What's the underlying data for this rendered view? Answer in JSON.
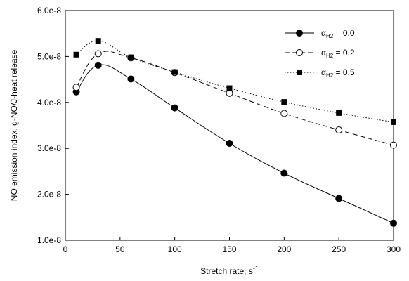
{
  "chart_data": {
    "type": "line",
    "title": "",
    "xlabel": "Stretch rate, s",
    "xlabel_superscript": "-1",
    "ylabel": "NO emission index, g-NO/J-heat release",
    "xlim": [
      0,
      300
    ],
    "ylim": [
      1e-08,
      6e-08
    ],
    "x_ticks": [
      0,
      50,
      100,
      150,
      200,
      250,
      300
    ],
    "x_tick_labels": [
      "0",
      "50",
      "100",
      "150",
      "200",
      "250",
      "300"
    ],
    "y_ticks": [
      1e-08,
      2e-08,
      3e-08,
      4e-08,
      5e-08,
      6e-08
    ],
    "y_tick_labels": [
      "1.0e-8",
      "2.0e-8",
      "3.0e-8",
      "4.0e-8",
      "5.0e-8",
      "6.0e-8"
    ],
    "grid": false,
    "legend_position": "top-right",
    "series": [
      {
        "name": "α_H2 = 0.0",
        "legend_symbol": "α",
        "legend_subscript": "H2",
        "legend_value": " = 0.0",
        "marker": "filled-circle",
        "line_style": "solid",
        "color": "#000000",
        "x": [
          10,
          30,
          60,
          100,
          150,
          200,
          250,
          300
        ],
        "y": [
          4.23e-08,
          4.81e-08,
          4.51e-08,
          3.88e-08,
          3.11e-08,
          2.46e-08,
          1.91e-08,
          1.37e-08
        ]
      },
      {
        "name": "α_H2 = 0.2",
        "legend_symbol": "α",
        "legend_subscript": "H2",
        "legend_value": " = 0.2",
        "marker": "open-circle",
        "line_style": "dashed",
        "color": "#000000",
        "x": [
          10,
          30,
          60,
          100,
          150,
          200,
          250,
          300
        ],
        "y": [
          4.33e-08,
          5.06e-08,
          4.97e-08,
          4.65e-08,
          4.2e-08,
          3.76e-08,
          3.4e-08,
          3.07e-08
        ]
      },
      {
        "name": "α_H2 = 0.5",
        "legend_symbol": "α",
        "legend_subscript": "H2",
        "legend_value": " = 0.5",
        "marker": "filled-square",
        "line_style": "dotted",
        "color": "#000000",
        "x": [
          10,
          30,
          60,
          100,
          150,
          200,
          250,
          300
        ],
        "y": [
          5.04e-08,
          5.34e-08,
          4.98e-08,
          4.66e-08,
          4.31e-08,
          4.01e-08,
          3.77e-08,
          3.57e-08
        ]
      }
    ]
  }
}
